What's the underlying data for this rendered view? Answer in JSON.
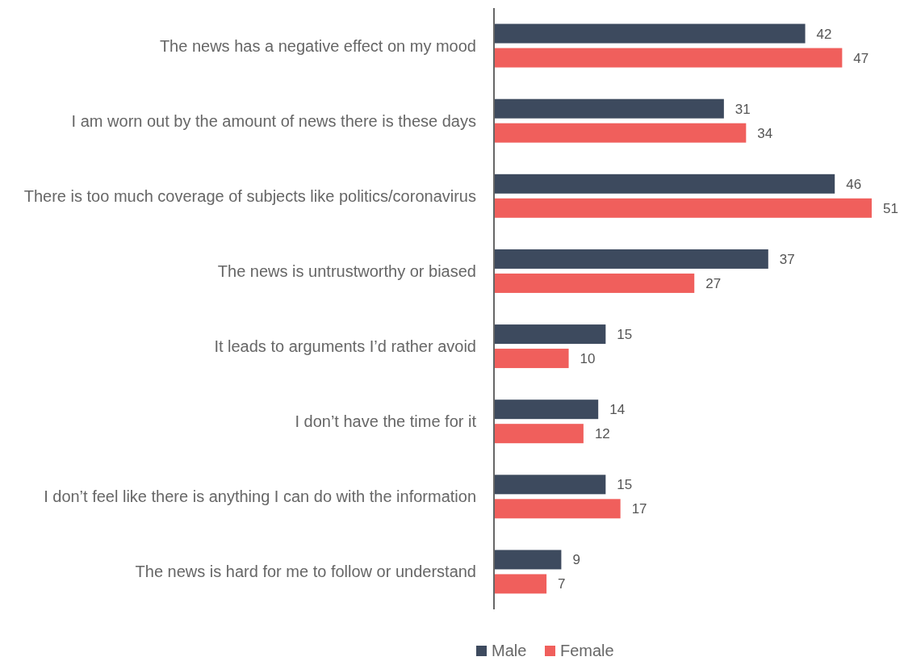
{
  "chart_data": {
    "type": "bar",
    "orientation": "horizontal",
    "categories": [
      "The news has a negative effect on my mood",
      "I am worn out by the amount of news there is these days",
      "There is too much coverage of subjects like politics/coronavirus",
      "The news is untrustworthy or biased",
      "It leads to arguments I’d rather avoid",
      "I don’t have the time for it",
      "I don’t feel like there is anything I can do with the information",
      "The news is hard for me to follow or understand"
    ],
    "series": [
      {
        "name": "Male",
        "color": "#3d4a5e",
        "values": [
          42,
          31,
          46,
          37,
          15,
          14,
          15,
          9
        ]
      },
      {
        "name": "Female",
        "color": "#f05f5c",
        "values": [
          47,
          34,
          51,
          27,
          10,
          12,
          17,
          7
        ]
      }
    ],
    "data_labels": true,
    "legend": "bottom"
  }
}
